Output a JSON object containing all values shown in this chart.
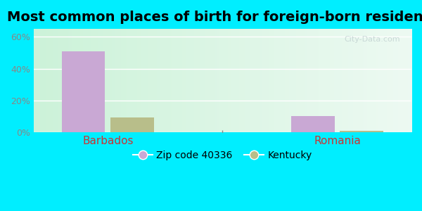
{
  "title": "Most common places of birth for foreign-born residents",
  "categories": [
    "Barbados",
    "Romania"
  ],
  "series": [
    {
      "label": "Zip code 40336",
      "values": [
        51,
        10
      ],
      "color": "#c9a8d4"
    },
    {
      "label": "Kentucky",
      "values": [
        9,
        1
      ],
      "color": "#b8be8a"
    }
  ],
  "ylim": [
    0,
    65
  ],
  "yticks": [
    0,
    20,
    40,
    60
  ],
  "yticklabels": [
    "0%",
    "20%",
    "40%",
    "60%"
  ],
  "bar_width": 0.32,
  "fig_bg_color": "#00eeff",
  "plot_bg_top": "#cceedd",
  "plot_bg_bottom": "#eeffee",
  "plot_bg_right": "#e8f8f0",
  "xlabel_color": "#cc3333",
  "ytick_color": "#888888",
  "title_fontsize": 14,
  "legend_fontsize": 10,
  "watermark_text": "City-Data.com",
  "watermark_color": "#c0d0d0"
}
